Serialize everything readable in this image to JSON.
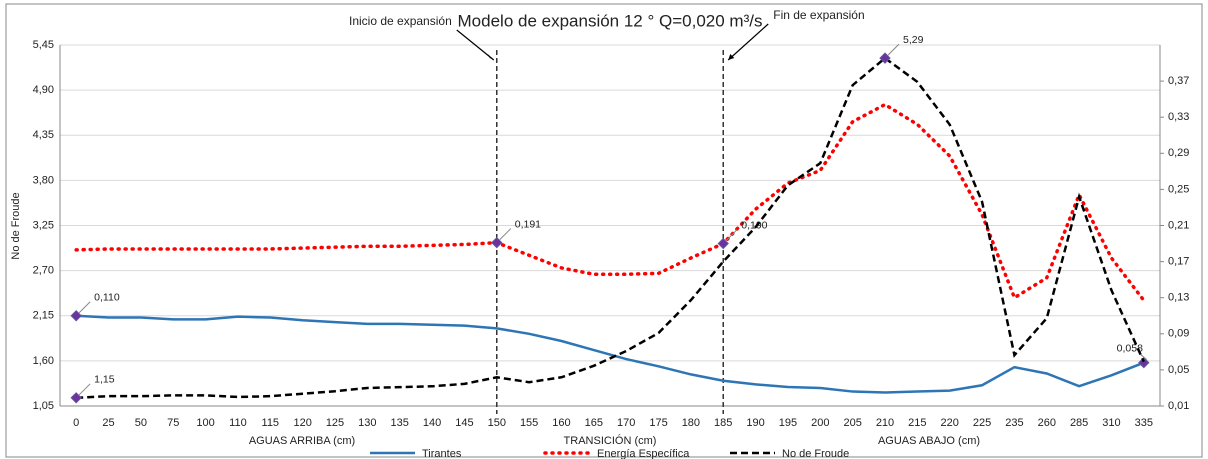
{
  "chart_data": {
    "type": "line",
    "title": "Modelo de expansión 12 ° Q=0,020 m³/s",
    "ylabel": "No de Froude",
    "xlabels": [
      "AGUAS ARRIBA (cm)",
      "TRANSICIÓN (cm)",
      "AGUAS ABAJO (cm)"
    ],
    "categories": [
      "0",
      "25",
      "50",
      "75",
      "100",
      "110",
      "115",
      "120",
      "125",
      "130",
      "135",
      "140",
      "145",
      "150",
      "155",
      "160",
      "165",
      "170",
      "175",
      "180",
      "185",
      "190",
      "195",
      "200",
      "205",
      "210",
      "215",
      "220",
      "225",
      "235",
      "260",
      "285",
      "310",
      "335"
    ],
    "ylim": [
      1.05,
      5.45
    ],
    "yticks": [
      {
        "value": 1.05,
        "label": "1,05"
      },
      {
        "value": 1.6,
        "label": "1,60"
      },
      {
        "value": 2.15,
        "label": "2,15"
      },
      {
        "value": 2.7,
        "label": "2,70"
      },
      {
        "value": 3.25,
        "label": "3,25"
      },
      {
        "value": 3.8,
        "label": "3,80"
      },
      {
        "value": 4.35,
        "label": "4,35"
      },
      {
        "value": 4.9,
        "label": "4,90"
      },
      {
        "value": 5.45,
        "label": "5,45"
      }
    ],
    "y2lim": [
      0.01,
      0.41
    ],
    "y2ticks": [
      {
        "value": 0.01,
        "label": "0,01"
      },
      {
        "value": 0.05,
        "label": "0,05"
      },
      {
        "value": 0.09,
        "label": "0,09"
      },
      {
        "value": 0.13,
        "label": "0,13"
      },
      {
        "value": 0.17,
        "label": "0,17"
      },
      {
        "value": 0.21,
        "label": "0,21"
      },
      {
        "value": 0.25,
        "label": "0,25"
      },
      {
        "value": 0.29,
        "label": "0,29"
      },
      {
        "value": 0.33,
        "label": "0,33"
      },
      {
        "value": 0.37,
        "label": "0,37"
      }
    ],
    "grid": true,
    "legend": "bottom",
    "annotations": [
      {
        "text": "Inicio de expansión",
        "x": "150"
      },
      {
        "text": "Fin de expansión",
        "x": "185"
      }
    ],
    "series": [
      {
        "name": "Tirantes",
        "color": "#2e75b6",
        "style": "solid",
        "axis": "y2",
        "values": [
          0.11,
          0.108,
          0.108,
          0.106,
          0.106,
          0.109,
          0.108,
          0.105,
          0.103,
          0.101,
          0.101,
          0.1,
          0.099,
          0.096,
          0.09,
          0.082,
          0.072,
          0.062,
          0.054,
          0.045,
          0.038,
          0.034,
          0.031,
          0.03,
          0.026,
          0.025,
          0.026,
          0.027,
          0.033,
          0.053,
          0.046,
          0.032,
          0.044,
          0.058
        ],
        "value_labels": [
          "0,110",
          null,
          null,
          null,
          null,
          null,
          null,
          null,
          null,
          null,
          null,
          null,
          null,
          null,
          null,
          null,
          null,
          null,
          null,
          null,
          null,
          null,
          null,
          null,
          null,
          null,
          null,
          null,
          null,
          null,
          null,
          null,
          null,
          "0,058"
        ]
      },
      {
        "name": "Energía Específica",
        "color": "#ff0000",
        "style": "dotted",
        "axis": "y2",
        "values": [
          0.183,
          0.184,
          0.184,
          0.184,
          0.184,
          0.184,
          0.184,
          0.185,
          0.186,
          0.187,
          0.187,
          0.188,
          0.189,
          0.191,
          0.177,
          0.163,
          0.156,
          0.156,
          0.157,
          0.174,
          0.19,
          0.228,
          0.257,
          0.271,
          0.325,
          0.344,
          0.322,
          0.287,
          0.222,
          0.13,
          0.152,
          0.244,
          0.174,
          0.127
        ],
        "value_labels": [
          null,
          null,
          null,
          null,
          null,
          null,
          null,
          null,
          null,
          null,
          null,
          null,
          null,
          "0,191",
          null,
          null,
          null,
          null,
          null,
          null,
          "0,190",
          null,
          null,
          null,
          null,
          null,
          null,
          null,
          null,
          null,
          null,
          null,
          null,
          null
        ]
      },
      {
        "name": "No de Froude",
        "color": "#000000",
        "style": "dashed",
        "values": [
          1.15,
          1.17,
          1.17,
          1.18,
          1.18,
          1.16,
          1.17,
          1.2,
          1.23,
          1.27,
          1.28,
          1.29,
          1.32,
          1.4,
          1.34,
          1.4,
          1.54,
          1.72,
          1.94,
          2.34,
          2.81,
          3.23,
          3.74,
          4.01,
          4.96,
          5.29,
          5.0,
          4.48,
          3.54,
          1.67,
          2.12,
          3.6,
          2.46,
          1.59
        ],
        "value_labels": [
          "1,15",
          null,
          null,
          null,
          null,
          null,
          null,
          null,
          null,
          null,
          null,
          null,
          null,
          null,
          null,
          null,
          null,
          null,
          null,
          null,
          null,
          null,
          null,
          null,
          null,
          "5,29",
          null,
          null,
          null,
          null,
          null,
          null,
          null,
          null
        ]
      }
    ]
  }
}
